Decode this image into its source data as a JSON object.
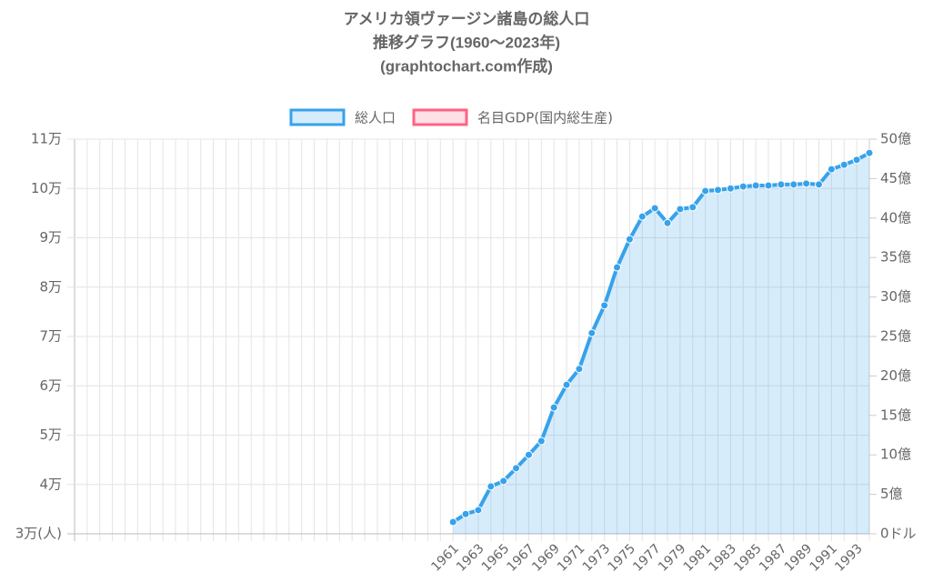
{
  "chart_data": {
    "type": "line",
    "title": [
      "アメリカ領ヴァージン諸島の総人口",
      "推移グラフ(1960〜2023年)",
      "(graphtochart.com作成)"
    ],
    "categories": [
      null,
      null,
      null,
      null,
      null,
      null,
      null,
      null,
      null,
      null,
      null,
      null,
      null,
      null,
      null,
      null,
      null,
      null,
      null,
      null,
      null,
      null,
      null,
      null,
      null,
      null,
      null,
      null,
      null,
      null,
      "1961",
      null,
      "1963",
      null,
      "1965",
      null,
      "1967",
      null,
      "1969",
      null,
      "1971",
      null,
      "1973",
      null,
      "1975",
      null,
      "1977",
      null,
      "1979",
      null,
      "1981",
      null,
      "1983",
      null,
      "1985",
      null,
      "1987",
      null,
      "1989",
      null,
      "1991",
      null,
      "1993",
      null
    ],
    "series": [
      {
        "name": "総人口",
        "color": "#36a2eb",
        "fill": "rgba(54,162,235,0.2)",
        "axis": "y",
        "values": [
          null,
          null,
          null,
          null,
          null,
          null,
          null,
          null,
          null,
          null,
          null,
          null,
          null,
          null,
          null,
          null,
          null,
          null,
          null,
          null,
          null,
          null,
          null,
          null,
          null,
          null,
          null,
          null,
          null,
          null,
          32400,
          34000,
          34800,
          39600,
          40700,
          43300,
          46000,
          48800,
          55600,
          60200,
          63400,
          70700,
          76300,
          84000,
          89700,
          94300,
          96000,
          93000,
          95800,
          96200,
          99500,
          99700,
          100000,
          100400,
          100600,
          100600,
          100800,
          100800,
          101000,
          100800,
          103900,
          104800,
          105800,
          107200
        ]
      },
      {
        "name": "名目GDP(国内総生産)",
        "color": "#ff6384",
        "fill": "rgba(255,99,132,0.2)",
        "axis": "y2",
        "values": [
          null,
          null,
          null,
          null,
          null,
          null,
          null,
          null,
          null,
          null,
          null,
          null,
          null,
          null,
          null,
          null,
          null,
          null,
          null,
          null,
          null,
          null,
          null,
          null,
          null,
          null,
          null,
          null,
          null,
          null,
          null,
          null,
          null,
          null,
          null,
          null,
          null,
          null,
          null,
          null,
          null,
          null,
          null,
          null,
          null,
          null,
          null,
          null,
          null,
          null,
          null,
          null,
          null,
          null,
          null,
          null,
          null,
          null,
          null,
          null,
          null,
          null,
          null,
          null
        ]
      }
    ],
    "ylim": [
      30000,
      110000
    ],
    "yticks": [
      {
        "value": 30000,
        "label": "3万(人)"
      },
      {
        "value": 40000,
        "label": "4万"
      },
      {
        "value": 50000,
        "label": "5万"
      },
      {
        "value": 60000,
        "label": "6万"
      },
      {
        "value": 70000,
        "label": "7万"
      },
      {
        "value": 80000,
        "label": "8万"
      },
      {
        "value": 90000,
        "label": "9万"
      },
      {
        "value": 100000,
        "label": "10万"
      },
      {
        "value": 110000,
        "label": "11万"
      }
    ],
    "y2lim": [
      0,
      5000000000
    ],
    "y2ticks": [
      {
        "value": 0,
        "label": "0ドル"
      },
      {
        "value": 500000000,
        "label": "5億"
      },
      {
        "value": 1000000000,
        "label": "10億"
      },
      {
        "value": 1500000000,
        "label": "15億"
      },
      {
        "value": 2000000000,
        "label": "20億"
      },
      {
        "value": 2500000000,
        "label": "25億"
      },
      {
        "value": 3000000000,
        "label": "30億"
      },
      {
        "value": 3500000000,
        "label": "35億"
      },
      {
        "value": 4000000000,
        "label": "40億"
      },
      {
        "value": 4500000000,
        "label": "45億"
      },
      {
        "value": 5000000000,
        "label": "50億"
      }
    ],
    "grid": true,
    "legend": "top"
  }
}
